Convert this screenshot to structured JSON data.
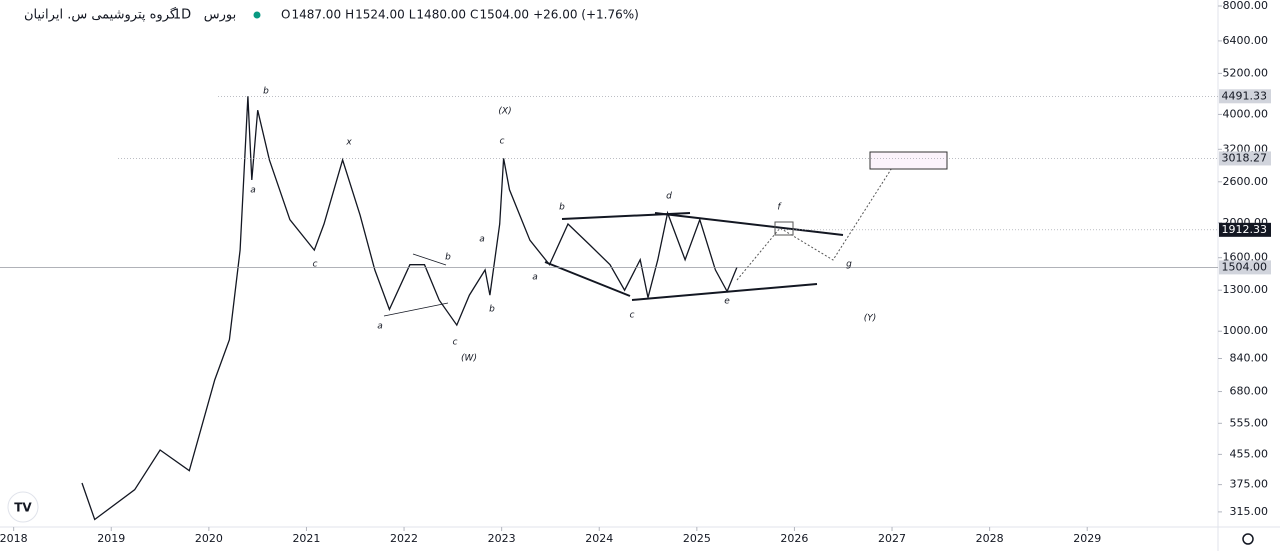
{
  "chart_data": {
    "type": "line",
    "title": "گروه پتروشیمی س. ایرانیان",
    "interval": "1D",
    "exchange": "بورس",
    "ohlc": [
      {
        "key": "O",
        "value": "1487.00"
      },
      {
        "key": "H",
        "value": "1524.00"
      },
      {
        "key": "L",
        "value": "1480.00"
      },
      {
        "key": "C",
        "value": "1504.00"
      }
    ],
    "change": "+26.00 (+1.76%)",
    "color": "#131722",
    "log_scale": true,
    "x": [
      2018.7,
      2018.83,
      2019.24,
      2019.5,
      2019.8,
      2020.06,
      2020.21,
      2020.32,
      2020.4,
      2020.44,
      2020.5,
      2020.62,
      2020.83,
      2021.08,
      2021.18,
      2021.37,
      2021.55,
      2021.7,
      2021.85,
      2022.06,
      2022.21,
      2022.36,
      2022.54,
      2022.67,
      2022.83,
      2022.88,
      2022.98,
      2023.02,
      2023.08,
      2023.29,
      2023.49,
      2023.68,
      2023.9,
      2024.11,
      2024.26,
      2024.42,
      2024.5,
      2024.6,
      2024.7,
      2024.88,
      2025.03,
      2025.19,
      2025.31,
      2025.41
    ],
    "values": [
      379,
      300,
      363,
      468,
      410,
      732,
      947,
      1680,
      4490,
      2630,
      4110,
      2990,
      2040,
      1680,
      1985,
      2990,
      2100,
      1480,
      1150,
      1530,
      1530,
      1220,
      1040,
      1260,
      1480,
      1260,
      1985,
      3020,
      2470,
      1790,
      1530,
      1985,
      1740,
      1530,
      1300,
      1580,
      1240,
      1580,
      2130,
      1580,
      2040,
      1480,
      1290,
      1504
    ],
    "xlim": [
      2017.86,
      2030.34
    ],
    "xticks": [
      2018,
      2019,
      2020,
      2021,
      2022,
      2023,
      2024,
      2025,
      2026,
      2027,
      2028,
      2029
    ],
    "ylim": [
      286,
      8313
    ],
    "yticks": [
      {
        "value": 8000,
        "label": "8000.00"
      },
      {
        "value": 6400,
        "label": "6400.00"
      },
      {
        "value": 5200,
        "label": "5200.00"
      },
      {
        "value": 4000,
        "label": "4000.00"
      },
      {
        "value": 3200,
        "label": "3200.00"
      },
      {
        "value": 2600,
        "label": "2600.00"
      },
      {
        "value": 2000,
        "label": "2000.00"
      },
      {
        "value": 1600,
        "label": "1600.00"
      },
      {
        "value": 1300,
        "label": "1300.00"
      },
      {
        "value": 1000,
        "label": "1000.00"
      },
      {
        "value": 840,
        "label": "840.00"
      },
      {
        "value": 680,
        "label": "680.00"
      },
      {
        "value": 555,
        "label": "555.00"
      },
      {
        "value": 455,
        "label": "455.00"
      },
      {
        "value": 375,
        "label": "375.00"
      },
      {
        "value": 315,
        "label": "315.00"
      }
    ],
    "price_lines": [
      {
        "value": 4491.33,
        "label": "4491.33",
        "color": "#d1d4dc"
      },
      {
        "value": 3018.27,
        "label": "3018.27",
        "color": "#d1d4dc"
      },
      {
        "value": 1912.33,
        "label": "1912.33",
        "color": "#131722"
      },
      {
        "value": 1504,
        "label": "1504.00",
        "color": "#d1d4dc"
      }
    ],
    "wave_labels": [
      "b",
      "x",
      "c",
      "(X)",
      "a",
      "c",
      "b",
      "a",
      "c",
      "(W)",
      "a",
      "b",
      "a",
      "b",
      "c",
      "d",
      "e",
      "f",
      "g",
      "(Y)"
    ]
  }
}
